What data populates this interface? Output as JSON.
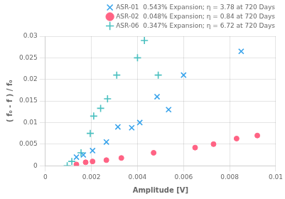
{
  "chart_data": {
    "type": "scatter",
    "xlabel": "Amplitude [V]",
    "ylabel": "( f₀ - f ) / f₀",
    "xlim": [
      0,
      0.01
    ],
    "ylim": [
      0,
      0.03
    ],
    "xticks": [
      0,
      0.002,
      0.004,
      0.006,
      0.008,
      0.01
    ],
    "yticks": [
      0,
      0.005,
      0.01,
      0.015,
      0.02,
      0.025,
      0.03
    ],
    "grid": true,
    "legend": "top right",
    "series": [
      {
        "name": "ASR-01  0.543% Expansion; η = 3.78 at 720 Days",
        "marker": "x",
        "x": [
          0.00135,
          0.00165,
          0.00205,
          0.00265,
          0.00315,
          0.00375,
          0.0041,
          0.00485,
          0.00535,
          0.006,
          0.0085
        ],
        "values": [
          0.002,
          0.0025,
          0.0035,
          0.0055,
          0.009,
          0.0088,
          0.01,
          0.016,
          0.013,
          0.021,
          0.0265
        ]
      },
      {
        "name": "ASR-02  0.048% Expansion; η = 0.84 at 720 Days",
        "marker": "circle",
        "x": [
          0.00135,
          0.00175,
          0.00205,
          0.00265,
          0.0033,
          0.0047,
          0.0065,
          0.0073,
          0.0083,
          0.0092
        ],
        "values": [
          0.0003,
          0.0008,
          0.001,
          0.0013,
          0.0018,
          0.003,
          0.0042,
          0.005,
          0.0063,
          0.007
        ]
      },
      {
        "name": "ASR-06  0.347% Expansion; η = 6.72 at 720 Days",
        "marker": "plus",
        "x": [
          0.00095,
          0.00115,
          0.00155,
          0.00195,
          0.0021,
          0.0024,
          0.0027,
          0.0031,
          0.004,
          0.0043,
          0.0049
        ],
        "values": [
          0.0,
          0.001,
          0.003,
          0.0075,
          0.0115,
          0.0133,
          0.0155,
          0.021,
          0.025,
          0.029,
          0.021
        ]
      }
    ]
  }
}
